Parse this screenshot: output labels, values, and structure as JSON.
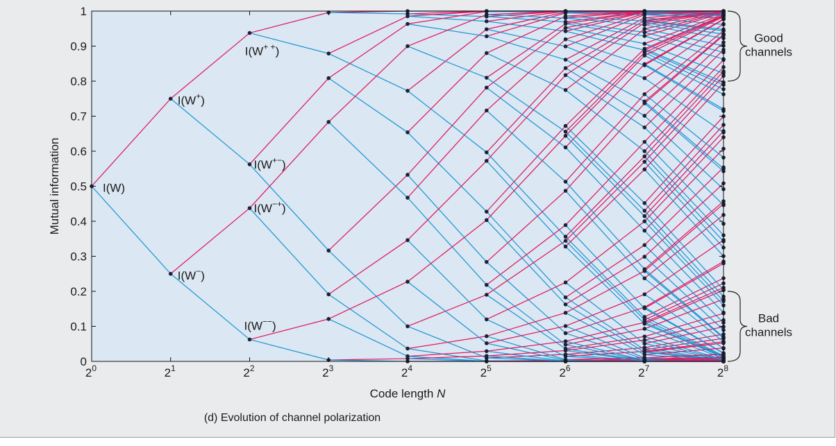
{
  "figure": {
    "caption": "(d) Evolution of channel polarization"
  },
  "chart_data": {
    "type": "line",
    "title": "",
    "xlabel": "Code length",
    "xlabel_var": "N",
    "ylabel": "Mutual information",
    "x_scale": "log2",
    "x_ticks": [
      {
        "base": "2",
        "exp": "0"
      },
      {
        "base": "2",
        "exp": "1"
      },
      {
        "base": "2",
        "exp": "2"
      },
      {
        "base": "2",
        "exp": "3"
      },
      {
        "base": "2",
        "exp": "4"
      },
      {
        "base": "2",
        "exp": "5"
      },
      {
        "base": "2",
        "exp": "6"
      },
      {
        "base": "2",
        "exp": "7"
      },
      {
        "base": "2",
        "exp": "8"
      }
    ],
    "y_ticks": [
      "0",
      "0.1",
      "0.2",
      "0.3",
      "0.4",
      "0.5",
      "0.6",
      "0.7",
      "0.8",
      "0.9",
      "1"
    ],
    "ylim": [
      0,
      1
    ],
    "grid": false,
    "plot_background": "#dbe7f3",
    "colors": {
      "plus_branch": "#e0185d",
      "minus_branch": "#1e96d2",
      "point": "#1c2233"
    },
    "initial_capacity": 0.5,
    "recursion": "I(W+) = 2I - I^2 (upper branch), I(W-) = I^2 (lower branch)",
    "levels": [
      {
        "N": 1,
        "values": [
          0.5
        ]
      },
      {
        "N": 2,
        "values": [
          0.75,
          0.25
        ]
      },
      {
        "N": 4,
        "values": [
          0.9375,
          0.5625,
          0.4375,
          0.0625
        ]
      },
      {
        "N": 8,
        "values": [
          0.9961,
          0.8789,
          0.8086,
          0.3164,
          0.6836,
          0.1914,
          0.1211,
          0.0039
        ]
      }
    ],
    "annotations": [
      {
        "text": "I(W)",
        "n": 0,
        "value": 0.5
      },
      {
        "text": "I(W",
        "sup": "+",
        "close": ")",
        "n": 1,
        "value": 0.75
      },
      {
        "text": "I(W",
        "sup": "−",
        "close": ")",
        "n": 1,
        "value": 0.25
      },
      {
        "text": "I(W",
        "sup": "+ +",
        "close": ")",
        "n": 2,
        "value": 0.9375
      },
      {
        "text": "I(W",
        "sup": "+−",
        "close": ")",
        "n": 2,
        "value": 0.5625
      },
      {
        "text": "I(W",
        "sup": "−+",
        "close": ")",
        "n": 2,
        "value": 0.4375
      },
      {
        "text": "I(W",
        "sup": "−−",
        "close": ")",
        "n": 2,
        "value": 0.0625
      }
    ],
    "brackets": [
      {
        "label_lines": [
          "Good",
          "channels"
        ],
        "from": 0.8,
        "to": 1.0
      },
      {
        "label_lines": [
          "Bad",
          "channels"
        ],
        "from": 0.0,
        "to": 0.2
      }
    ]
  }
}
